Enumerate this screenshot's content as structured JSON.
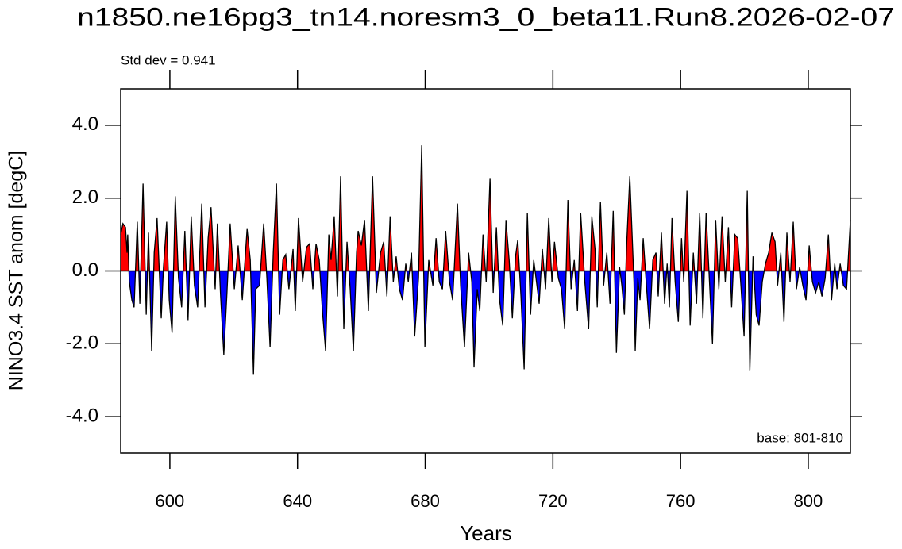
{
  "chart_data": {
    "type": "line",
    "title": "n1850.ne16pg3_tn14.noresm3_0_beta11.Run8.2026-02-07",
    "annotation_left": "Std dev = 0.941",
    "annotation_right": "base: 801-810",
    "xlabel": "Years",
    "ylabel": "NINO3.4 SST anom [degC]",
    "xlim": [
      584.6,
      813.2
    ],
    "ylim": [
      -5,
      5
    ],
    "xticks": [
      600,
      640,
      680,
      720,
      760,
      800
    ],
    "yticks": [
      {
        "value": -4,
        "label": "-4.0"
      },
      {
        "value": -2,
        "label": "-2.0"
      },
      {
        "value": 0,
        "label": "0.0"
      },
      {
        "value": 2,
        "label": "2.0"
      },
      {
        "value": 4,
        "label": "4.0"
      }
    ],
    "reference_line": 0,
    "line_color": "#000000",
    "above_color": "#ff0000",
    "below_color": "#0000ff",
    "x": [
      584.6,
      585.3,
      586.1,
      586.6,
      586.8,
      587.3,
      588.1,
      588.8,
      589.8,
      590.6,
      591.6,
      592.6,
      593.3,
      594.3,
      595.1,
      596.0,
      597.3,
      598.0,
      599.0,
      599.8,
      600.7,
      601.7,
      602.7,
      603.7,
      604.7,
      605.7,
      606.7,
      607.7,
      608.7,
      610.0,
      611.0,
      612.0,
      612.9,
      614.2,
      614.9,
      615.9,
      616.9,
      617.9,
      618.9,
      620.2,
      621.4,
      622.7,
      624.2,
      625.2,
      626.2,
      626.9,
      628.1,
      629.4,
      630.4,
      631.4,
      632.4,
      633.4,
      634.4,
      635.4,
      636.3,
      637.3,
      638.6,
      639.3,
      640.3,
      641.6,
      642.8,
      643.8,
      644.8,
      645.8,
      646.8,
      647.8,
      648.8,
      649.8,
      650.5,
      651.5,
      652.5,
      653.5,
      654.5,
      655.5,
      656.5,
      657.5,
      658.5,
      659.0,
      660.0,
      661.0,
      662.2,
      663.5,
      664.7,
      666.0,
      667.0,
      668.0,
      669.0,
      670.0,
      670.9,
      671.9,
      672.9,
      673.9,
      674.7,
      675.7,
      676.7,
      677.9,
      678.9,
      679.9,
      681.1,
      682.4,
      683.4,
      684.4,
      685.4,
      686.4,
      687.6,
      688.6,
      690.1,
      691.1,
      692.3,
      693.6,
      694.6,
      695.3,
      696.3,
      697.1,
      698.1,
      699.1,
      700.3,
      701.3,
      702.3,
      703.3,
      704.3,
      705.3,
      706.3,
      707.3,
      708.3,
      709.0,
      710.0,
      711.0,
      712.0,
      713.0,
      714.0,
      715.0,
      715.7,
      716.7,
      717.7,
      718.7,
      719.7,
      720.5,
      721.7,
      722.7,
      723.7,
      724.7,
      725.7,
      726.7,
      727.7,
      728.7,
      730.0,
      731.2,
      732.2,
      733.2,
      733.9,
      734.9,
      735.9,
      736.9,
      737.9,
      738.9,
      739.9,
      740.9,
      741.6,
      742.4,
      743.1,
      744.1,
      745.4,
      745.8,
      746.6,
      747.3,
      748.3,
      749.3,
      750.3,
      751.3,
      752.3,
      753.0,
      754.0,
      755.0,
      755.8,
      756.5,
      757.3,
      758.3,
      759.3,
      760.3,
      761.0,
      762.0,
      763.0,
      764.0,
      765.0,
      766.0,
      767.0,
      768.0,
      769.0,
      770.0,
      771.0,
      772.0,
      773.0,
      774.0,
      775.0,
      776.0,
      777.0,
      777.9,
      778.9,
      779.9,
      780.9,
      781.7,
      782.7,
      783.7,
      784.6,
      785.6,
      786.6,
      787.6,
      788.6,
      789.6,
      790.4,
      791.4,
      792.4,
      793.3,
      794.3,
      795.3,
      796.3,
      797.3,
      798.3,
      799.3,
      800.3,
      801.3,
      802.3,
      803.3,
      804.3,
      805.3,
      806.3,
      807.3,
      808.3,
      809.0,
      810.0,
      811.0,
      812.0,
      813.2
    ],
    "values": [
      1.0,
      1.3,
      1.2,
      0.5,
      1.0,
      -0.3,
      -0.8,
      -1.0,
      1.35,
      -0.9,
      2.4,
      -1.2,
      1.05,
      -2.2,
      0.5,
      1.45,
      -1.3,
      0.1,
      1.35,
      -0.8,
      -1.7,
      2.05,
      -0.2,
      -1.0,
      1.1,
      -1.35,
      1.5,
      -0.4,
      -1.0,
      1.85,
      -1.0,
      0.9,
      1.75,
      -0.5,
      1.3,
      -0.7,
      -2.3,
      -0.6,
      1.3,
      -0.5,
      0.7,
      -0.8,
      1.15,
      0.3,
      -2.85,
      -0.5,
      -0.4,
      1.3,
      -0.2,
      -2.1,
      0.5,
      2.4,
      -1.2,
      0.3,
      0.45,
      -0.5,
      0.6,
      -1.1,
      1.45,
      -0.3,
      0.65,
      0.75,
      -0.5,
      0.75,
      0.3,
      -1.1,
      -2.2,
      1.0,
      0.3,
      1.5,
      -0.7,
      2.6,
      -1.6,
      0.8,
      -0.5,
      -2.2,
      0.5,
      1.1,
      0.7,
      1.4,
      -1.1,
      2.6,
      -0.6,
      0.5,
      0.8,
      -0.7,
      1.5,
      -0.3,
      0.4,
      -0.5,
      -0.8,
      0.2,
      -0.3,
      0.5,
      -1.8,
      -0.2,
      3.45,
      -2.1,
      0.3,
      -0.4,
      0.9,
      -0.3,
      -0.5,
      1.1,
      -0.3,
      -0.8,
      1.85,
      -0.4,
      -2.1,
      0.5,
      -0.3,
      -2.65,
      -0.5,
      -1.1,
      1.0,
      -0.3,
      2.55,
      -0.6,
      1.2,
      -0.8,
      -1.5,
      1.4,
      0.3,
      -1.3,
      0.4,
      0.85,
      -0.7,
      -2.7,
      1.6,
      -1.2,
      0.3,
      -0.4,
      -0.9,
      0.6,
      -0.5,
      1.45,
      -0.3,
      0.8,
      -0.2,
      -0.5,
      -1.6,
      1.95,
      -0.5,
      0.3,
      -1.1,
      1.6,
      -0.3,
      -1.6,
      1.5,
      0.6,
      -1.0,
      1.9,
      -0.4,
      0.5,
      -0.9,
      1.65,
      -2.25,
      0.1,
      -0.4,
      -1.2,
      0.7,
      2.6,
      -0.3,
      -2.2,
      -0.2,
      -0.8,
      0.9,
      -0.4,
      -1.6,
      0.3,
      0.5,
      -0.7,
      1.05,
      -0.9,
      0.2,
      -1.0,
      1.45,
      -0.3,
      -1.4,
      0.9,
      -0.3,
      2.2,
      -1.5,
      0.5,
      -0.9,
      1.6,
      -1.3,
      1.6,
      -0.2,
      -2.0,
      1.4,
      -0.5,
      1.5,
      -0.3,
      1.2,
      -1.0,
      1.0,
      0.9,
      -0.4,
      -1.8,
      2.2,
      -2.75,
      0.4,
      -1.2,
      -1.5,
      -0.3,
      0.2,
      0.5,
      1.05,
      0.8,
      -0.4,
      0.5,
      -1.4,
      1.05,
      -0.3,
      1.35,
      -0.5,
      0.1,
      -0.4,
      -0.8,
      0.7,
      -0.3,
      -0.6,
      -0.3,
      -0.7,
      -0.2,
      1.0,
      -0.8,
      0.2,
      -0.5,
      0.2,
      -0.4,
      -0.5,
      1.4
    ]
  }
}
